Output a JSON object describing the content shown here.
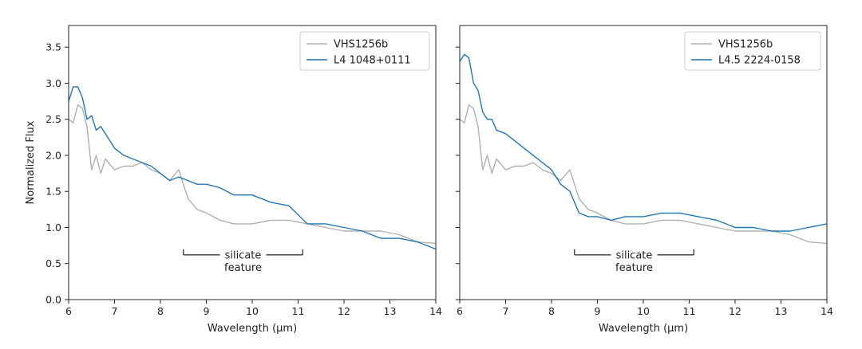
{
  "chart_data": [
    {
      "type": "line",
      "xlabel": "Wavelength (µm)",
      "ylabel": "Normalized Flux",
      "xlim": [
        6,
        14
      ],
      "ylim": [
        0,
        3.8
      ],
      "xticks": [
        6,
        7,
        8,
        9,
        10,
        11,
        12,
        13,
        14
      ],
      "yticks": [
        0.0,
        0.5,
        1.0,
        1.5,
        2.0,
        2.5,
        3.0,
        3.5
      ],
      "legend_position": "upper-right",
      "annotation": {
        "line1": "silicate",
        "line2": "feature",
        "x_start": 8.5,
        "x_end": 11.1
      },
      "series": [
        {
          "name": "VHS1256b",
          "color": "#b0b0b0",
          "x": [
            6.0,
            6.1,
            6.2,
            6.3,
            6.4,
            6.5,
            6.6,
            6.7,
            6.8,
            7.0,
            7.2,
            7.4,
            7.6,
            7.8,
            8.0,
            8.2,
            8.4,
            8.6,
            8.8,
            9.0,
            9.3,
            9.6,
            10.0,
            10.4,
            10.8,
            11.2,
            11.6,
            12.0,
            12.4,
            12.8,
            13.2,
            13.6,
            14.0
          ],
          "y": [
            2.5,
            2.45,
            2.7,
            2.65,
            2.4,
            1.8,
            2.0,
            1.75,
            1.95,
            1.8,
            1.85,
            1.85,
            1.9,
            1.8,
            1.75,
            1.65,
            1.8,
            1.4,
            1.25,
            1.2,
            1.1,
            1.05,
            1.05,
            1.1,
            1.1,
            1.05,
            1.0,
            0.95,
            0.95,
            0.95,
            0.9,
            0.8,
            0.78
          ]
        },
        {
          "name": "L4 1048+0111",
          "color": "#1f77b4",
          "x": [
            6.0,
            6.1,
            6.2,
            6.3,
            6.4,
            6.5,
            6.6,
            6.7,
            6.8,
            7.0,
            7.2,
            7.4,
            7.6,
            7.8,
            8.0,
            8.2,
            8.4,
            8.6,
            8.8,
            9.0,
            9.3,
            9.6,
            10.0,
            10.4,
            10.8,
            11.2,
            11.6,
            12.0,
            12.4,
            12.8,
            13.2,
            13.6,
            14.0
          ],
          "y": [
            2.75,
            2.95,
            2.95,
            2.8,
            2.5,
            2.55,
            2.35,
            2.4,
            2.3,
            2.1,
            2.0,
            1.95,
            1.9,
            1.85,
            1.75,
            1.65,
            1.7,
            1.65,
            1.6,
            1.6,
            1.55,
            1.45,
            1.45,
            1.35,
            1.3,
            1.05,
            1.05,
            1.0,
            0.95,
            0.85,
            0.85,
            0.8,
            0.7
          ]
        }
      ]
    },
    {
      "type": "line",
      "xlabel": "Wavelength (µm)",
      "ylabel": "",
      "xlim": [
        6,
        14
      ],
      "ylim": [
        0,
        3.8
      ],
      "xticks": [
        6,
        7,
        8,
        9,
        10,
        11,
        12,
        13,
        14
      ],
      "yticks": [
        0.0,
        0.5,
        1.0,
        1.5,
        2.0,
        2.5,
        3.0,
        3.5
      ],
      "legend_position": "upper-right",
      "annotation": {
        "line1": "silicate",
        "line2": "feature",
        "x_start": 8.5,
        "x_end": 11.1
      },
      "series": [
        {
          "name": "VHS1256b",
          "color": "#b0b0b0",
          "x": [
            6.0,
            6.1,
            6.2,
            6.3,
            6.4,
            6.5,
            6.6,
            6.7,
            6.8,
            7.0,
            7.2,
            7.4,
            7.6,
            7.8,
            8.0,
            8.2,
            8.4,
            8.6,
            8.8,
            9.0,
            9.3,
            9.6,
            10.0,
            10.4,
            10.8,
            11.2,
            11.6,
            12.0,
            12.4,
            12.8,
            13.2,
            13.6,
            14.0
          ],
          "y": [
            2.5,
            2.45,
            2.7,
            2.65,
            2.4,
            1.8,
            2.0,
            1.75,
            1.95,
            1.8,
            1.85,
            1.85,
            1.9,
            1.8,
            1.75,
            1.65,
            1.8,
            1.4,
            1.25,
            1.2,
            1.1,
            1.05,
            1.05,
            1.1,
            1.1,
            1.05,
            1.0,
            0.95,
            0.95,
            0.95,
            0.9,
            0.8,
            0.78
          ]
        },
        {
          "name": "L4.5 2224-0158",
          "color": "#1f77b4",
          "x": [
            6.0,
            6.1,
            6.2,
            6.3,
            6.4,
            6.5,
            6.6,
            6.7,
            6.8,
            7.0,
            7.2,
            7.4,
            7.6,
            7.8,
            8.0,
            8.2,
            8.4,
            8.6,
            8.8,
            9.0,
            9.3,
            9.6,
            10.0,
            10.4,
            10.8,
            11.2,
            11.6,
            12.0,
            12.4,
            12.8,
            13.2,
            13.6,
            14.0
          ],
          "y": [
            3.3,
            3.4,
            3.35,
            3.0,
            2.9,
            2.6,
            2.5,
            2.5,
            2.35,
            2.3,
            2.2,
            2.1,
            2.0,
            1.9,
            1.8,
            1.6,
            1.5,
            1.2,
            1.15,
            1.15,
            1.1,
            1.15,
            1.15,
            1.2,
            1.2,
            1.15,
            1.1,
            1.0,
            1.0,
            0.95,
            0.95,
            1.0,
            1.05
          ]
        }
      ]
    }
  ]
}
